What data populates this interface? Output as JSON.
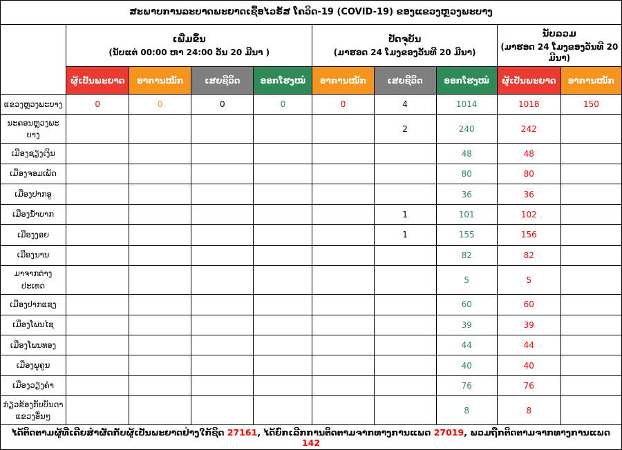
{
  "title": "ສະພາບການລະບາດພະຍາດເຊື້ອໄວຣັສ ໂຄວິດ-19 (COVID-19) ຂອງແຂວງຫຼວງພະບາງ",
  "colors": {
    "red_header": "#E93B32",
    "orange_header": "#F7941E",
    "gray_header": "#7F7F7F",
    "green_header": "#2E8B57",
    "value_red": "#FF0000",
    "value_orange": "#F7941E",
    "value_green": "#2E8B57",
    "value_black": "#000000"
  },
  "table": {
    "groups": [
      {
        "label": "ເພີ່ມຂຶ້ນ",
        "sub": "(ນັບແຕ່ 00:00 ຫາ 24:00 ວັນ 20 ມີນາ )",
        "cols": 4
      },
      {
        "label": "ປັດຈຸບັນ",
        "sub": "(ມາຮອດ 24 ໂມງຂອງວັນທີ 20 ມີນາ)",
        "cols": 3
      },
      {
        "label": "ນັບລວມ",
        "sub": "(ມາຮອດ 24 ໂມງຂອງວັນທີ 20 ມີນາ)",
        "cols": 2
      }
    ],
    "columns": [
      {
        "label": "ຜູ້ເປັນພະຍາດ",
        "header_color": "red_header",
        "value_color": "value_red"
      },
      {
        "label": "ອາການໜັກ",
        "header_color": "orange_header",
        "value_color": "value_orange"
      },
      {
        "label": "ເສຍຊີວິດ",
        "header_color": "gray_header",
        "value_color": "value_black"
      },
      {
        "label": "ອອກໂຮງໝໍ",
        "header_color": "green_header",
        "value_color": "value_green"
      },
      {
        "label": "ອາການໜັກ",
        "header_color": "orange_header",
        "value_color": "value_red"
      },
      {
        "label": "ເສຍຊີວິດ",
        "header_color": "gray_header",
        "value_color": "value_black"
      },
      {
        "label": "ອອກໂຮງໝໍ",
        "header_color": "green_header",
        "value_color": "value_green"
      },
      {
        "label": "ຜູ້ເປັນພະຍາດ",
        "header_color": "red_header",
        "value_color": "value_red"
      },
      {
        "label": "ອາການໜັກ",
        "header_color": "orange_header",
        "value_color": "value_red"
      }
    ],
    "rows": [
      {
        "name": "ແຂວງຫຼວງພະບາງ",
        "values": [
          "0",
          "0",
          "0",
          "0",
          "0",
          "4",
          "1014",
          "1018",
          "150"
        ]
      },
      {
        "name": "ນະຄອນຫຼວງພະບາງ",
        "values": [
          "",
          "",
          "",
          "",
          "",
          "2",
          "240",
          "242",
          ""
        ]
      },
      {
        "name": "ເມືອງຊຽງເງິນ",
        "values": [
          "",
          "",
          "",
          "",
          "",
          "",
          "48",
          "48",
          ""
        ]
      },
      {
        "name": "ເມືອງຈອມເພັດ",
        "values": [
          "",
          "",
          "",
          "",
          "",
          "",
          "80",
          "80",
          ""
        ]
      },
      {
        "name": "ເມືອງປາກອູ",
        "values": [
          "",
          "",
          "",
          "",
          "",
          "",
          "36",
          "36",
          ""
        ]
      },
      {
        "name": "ເມືອງນ້ຳບາກ",
        "values": [
          "",
          "",
          "",
          "",
          "",
          "1",
          "101",
          "102",
          ""
        ]
      },
      {
        "name": "ເມືອງງອຍ",
        "values": [
          "",
          "",
          "",
          "",
          "",
          "1",
          "155",
          "156",
          ""
        ]
      },
      {
        "name": "ເມືອງນານ",
        "values": [
          "",
          "",
          "",
          "",
          "",
          "",
          "82",
          "82",
          ""
        ]
      },
      {
        "name": "ມາຈາກຕ່າງປະເທດ",
        "values": [
          "",
          "",
          "",
          "",
          "",
          "",
          "5",
          "5",
          ""
        ]
      },
      {
        "name": "ເມືອງປາກແຊງ",
        "values": [
          "",
          "",
          "",
          "",
          "",
          "",
          "60",
          "60",
          ""
        ]
      },
      {
        "name": "ເມືອງໂພນໄຊ",
        "values": [
          "",
          "",
          "",
          "",
          "",
          "",
          "39",
          "39",
          ""
        ]
      },
      {
        "name": "ເມືອງໂພນທອງ",
        "values": [
          "",
          "",
          "",
          "",
          "",
          "",
          "44",
          "44",
          ""
        ]
      },
      {
        "name": "ເມືອງພູຄູນ",
        "values": [
          "",
          "",
          "",
          "",
          "",
          "",
          "40",
          "40",
          ""
        ]
      },
      {
        "name": "ເມືອງວຽງຄຳ",
        "values": [
          "",
          "",
          "",
          "",
          "",
          "",
          "76",
          "76",
          ""
        ]
      },
      {
        "name": "ກ່ຽວຂ້ອງກັບບັນດາແຂວງອື່ນໆ",
        "values": [
          "",
          "",
          "",
          "",
          "",
          "",
          "8",
          "8",
          ""
        ]
      }
    ]
  },
  "footer": {
    "segments": [
      {
        "text": "ໄດ້ຕິດຕາມຜູ້ທີ່ເຄີຍສຳຜັດກັບຜູ້ເປັນພະຍາດຢ່າງໃກ້ຊິດ ",
        "color": "value_black"
      },
      {
        "text": "27161",
        "color": "value_red"
      },
      {
        "text": ", ໄດ້ຍົກເລີກການຕິດຕາມຈາກທາງການແພດ ",
        "color": "value_black"
      },
      {
        "text": "27019",
        "color": "value_red"
      },
      {
        "text": ", ພວມຖືກຕິດຕາມຈາກທາງການແພດ ",
        "color": "value_black"
      },
      {
        "text": "142",
        "color": "value_red"
      }
    ]
  }
}
